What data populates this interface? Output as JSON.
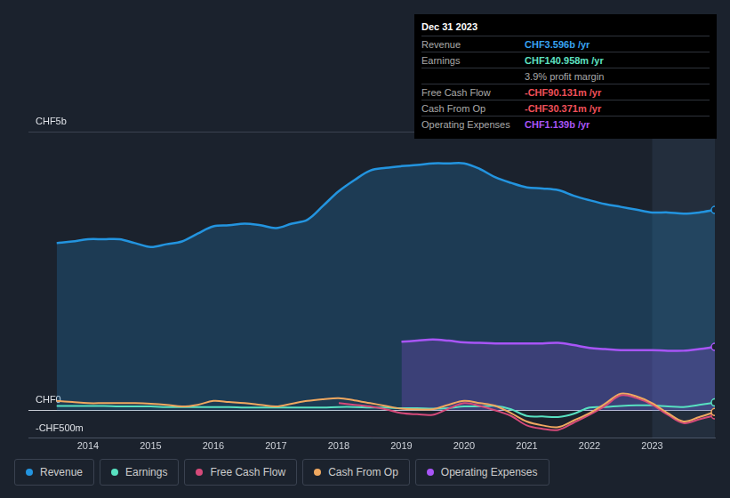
{
  "chart_data": {
    "type": "line",
    "grid": true,
    "legend": "bottom",
    "x": [
      2013.5,
      2013.75,
      2014,
      2014.25,
      2014.5,
      2014.75,
      2015,
      2015.25,
      2015.5,
      2015.75,
      2016,
      2016.25,
      2016.5,
      2016.75,
      2017,
      2017.25,
      2017.5,
      2017.75,
      2018,
      2018.25,
      2018.5,
      2018.75,
      2019,
      2019.25,
      2019.5,
      2019.75,
      2020,
      2020.25,
      2020.5,
      2020.75,
      2021,
      2021.25,
      2021.5,
      2021.75,
      2022,
      2022.25,
      2022.5,
      2022.75,
      2023,
      2023.25,
      2023.5,
      2023.75,
      2024
    ],
    "xlim": [
      2013.05,
      2024
    ],
    "xticks": [
      2014,
      2015,
      2016,
      2017,
      2018,
      2019,
      2020,
      2021,
      2022,
      2023
    ],
    "ylim": [
      -0.5,
      5
    ],
    "yticks": [
      {
        "value": -0.5,
        "label": "-CHF500m"
      },
      {
        "value": 0,
        "label": "CHF0"
      },
      {
        "value": 5,
        "label": "CHF5b"
      }
    ],
    "series": [
      {
        "name": "Revenue",
        "color": "#2394df",
        "type": "area",
        "values": [
          3.0,
          3.03,
          3.07,
          3.07,
          3.07,
          3.0,
          2.93,
          2.98,
          3.03,
          3.17,
          3.3,
          3.32,
          3.35,
          3.32,
          3.27,
          3.35,
          3.42,
          3.67,
          3.93,
          4.13,
          4.3,
          4.35,
          4.38,
          4.4,
          4.43,
          4.43,
          4.43,
          4.33,
          4.18,
          4.08,
          4.0,
          3.98,
          3.95,
          3.85,
          3.77,
          3.7,
          3.65,
          3.6,
          3.55,
          3.55,
          3.53,
          3.55,
          3.596
        ]
      },
      {
        "name": "Earnings",
        "color": "#58e1c1",
        "type": "line",
        "values": [
          0.08,
          0.08,
          0.08,
          0.08,
          0.07,
          0.07,
          0.07,
          0.06,
          0.06,
          0.06,
          0.06,
          0.06,
          0.05,
          0.05,
          0.05,
          0.05,
          0.05,
          0.05,
          0.06,
          0.06,
          0.05,
          0.05,
          0.04,
          0.04,
          0.03,
          0.04,
          0.07,
          0.07,
          0.08,
          0.02,
          -0.1,
          -0.11,
          -0.12,
          -0.06,
          0.05,
          0.06,
          0.08,
          0.09,
          0.09,
          0.07,
          0.06,
          0.1,
          0.141
        ]
      },
      {
        "name": "Free Cash Flow",
        "color": "#d64a7a",
        "type": "line",
        "values": [
          null,
          null,
          null,
          null,
          null,
          null,
          null,
          null,
          null,
          null,
          null,
          null,
          null,
          null,
          null,
          null,
          null,
          null,
          0.13,
          0.1,
          0.07,
          0.02,
          -0.05,
          -0.07,
          -0.08,
          0.03,
          0.13,
          0.08,
          0.0,
          -0.1,
          -0.27,
          -0.33,
          -0.35,
          -0.22,
          -0.08,
          0.08,
          0.27,
          0.22,
          0.1,
          -0.08,
          -0.23,
          -0.16,
          -0.09
        ]
      },
      {
        "name": "Cash From Op",
        "color": "#f0a860",
        "type": "line",
        "values": [
          0.17,
          0.15,
          0.13,
          0.13,
          0.13,
          0.13,
          0.12,
          0.1,
          0.07,
          0.1,
          0.17,
          0.15,
          0.13,
          0.1,
          0.07,
          0.12,
          0.17,
          0.2,
          0.22,
          0.18,
          0.13,
          0.08,
          0.03,
          0.02,
          0.02,
          0.1,
          0.17,
          0.13,
          0.08,
          -0.05,
          -0.2,
          -0.27,
          -0.3,
          -0.18,
          -0.05,
          0.12,
          0.3,
          0.25,
          0.13,
          -0.05,
          -0.2,
          -0.12,
          -0.03
        ]
      },
      {
        "name": "Operating Expenses",
        "color": "#a855f7",
        "type": "area",
        "values": [
          null,
          null,
          null,
          null,
          null,
          null,
          null,
          null,
          null,
          null,
          null,
          null,
          null,
          null,
          null,
          null,
          null,
          null,
          null,
          null,
          null,
          null,
          1.23,
          1.25,
          1.27,
          1.25,
          1.22,
          1.21,
          1.2,
          1.2,
          1.2,
          1.2,
          1.21,
          1.17,
          1.12,
          1.1,
          1.08,
          1.08,
          1.08,
          1.07,
          1.07,
          1.1,
          1.139
        ]
      }
    ],
    "annotations": {
      "title": "Dec 31 2023",
      "rows": [
        {
          "label": "Revenue",
          "value": "CHF3.596b /yr",
          "color": "#38a3f1"
        },
        {
          "label": "Earnings",
          "value": "CHF140.958m /yr",
          "color": "#5ee0c0"
        },
        {
          "value": "3.9% profit margin"
        },
        {
          "label": "Free Cash Flow",
          "value": "-CHF90.131m /yr",
          "color": "#f0505a"
        },
        {
          "label": "Cash From Op",
          "value": "-CHF30.371m /yr",
          "color": "#f0505a"
        },
        {
          "label": "Operating Expenses",
          "value": "CHF1.139b /yr",
          "color": "#a855f7"
        }
      ]
    }
  }
}
